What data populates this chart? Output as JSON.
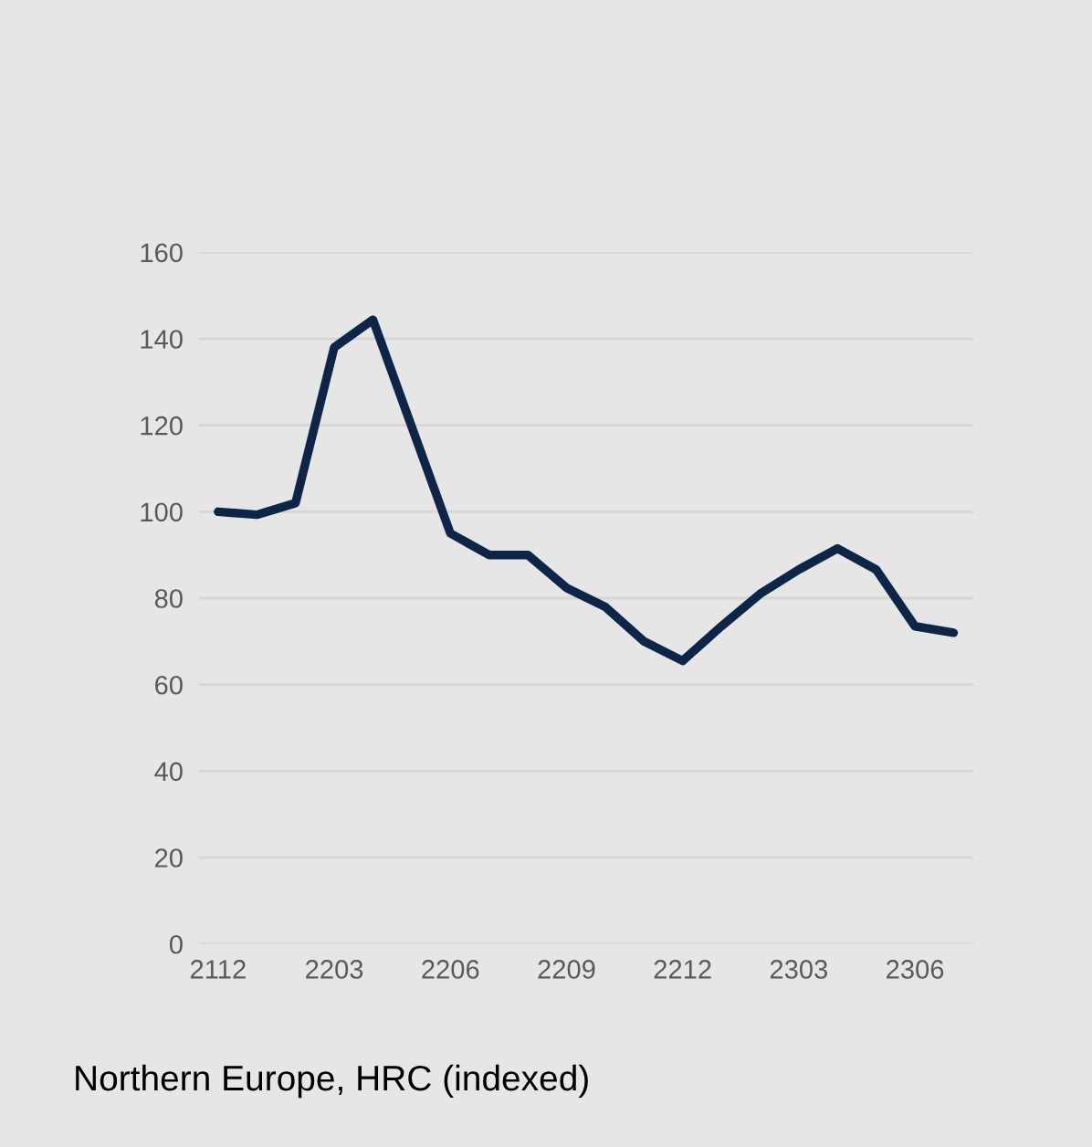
{
  "chart_data": {
    "type": "line",
    "title": "Northern Europe, HRC (indexed)",
    "categories": [
      "2112",
      null,
      null,
      "2203",
      null,
      null,
      "2206",
      null,
      null,
      "2209",
      null,
      null,
      "2212",
      null,
      null,
      "2303",
      null,
      null,
      "2306",
      null
    ],
    "series": [
      {
        "color": "#0f2548",
        "values": [
          100,
          99.3,
          102,
          138,
          144.4,
          119.7,
          95,
          90,
          90,
          82.4,
          78,
          70,
          65.5,
          73.5,
          81,
          86.6,
          91.5,
          86.6,
          73.5,
          72
        ]
      }
    ],
    "ylim": [
      0,
      160
    ],
    "yticks": [
      0,
      20,
      40,
      60,
      80,
      100,
      120,
      140,
      160
    ],
    "grid": "y",
    "line_style": "solid",
    "marker": "none"
  }
}
